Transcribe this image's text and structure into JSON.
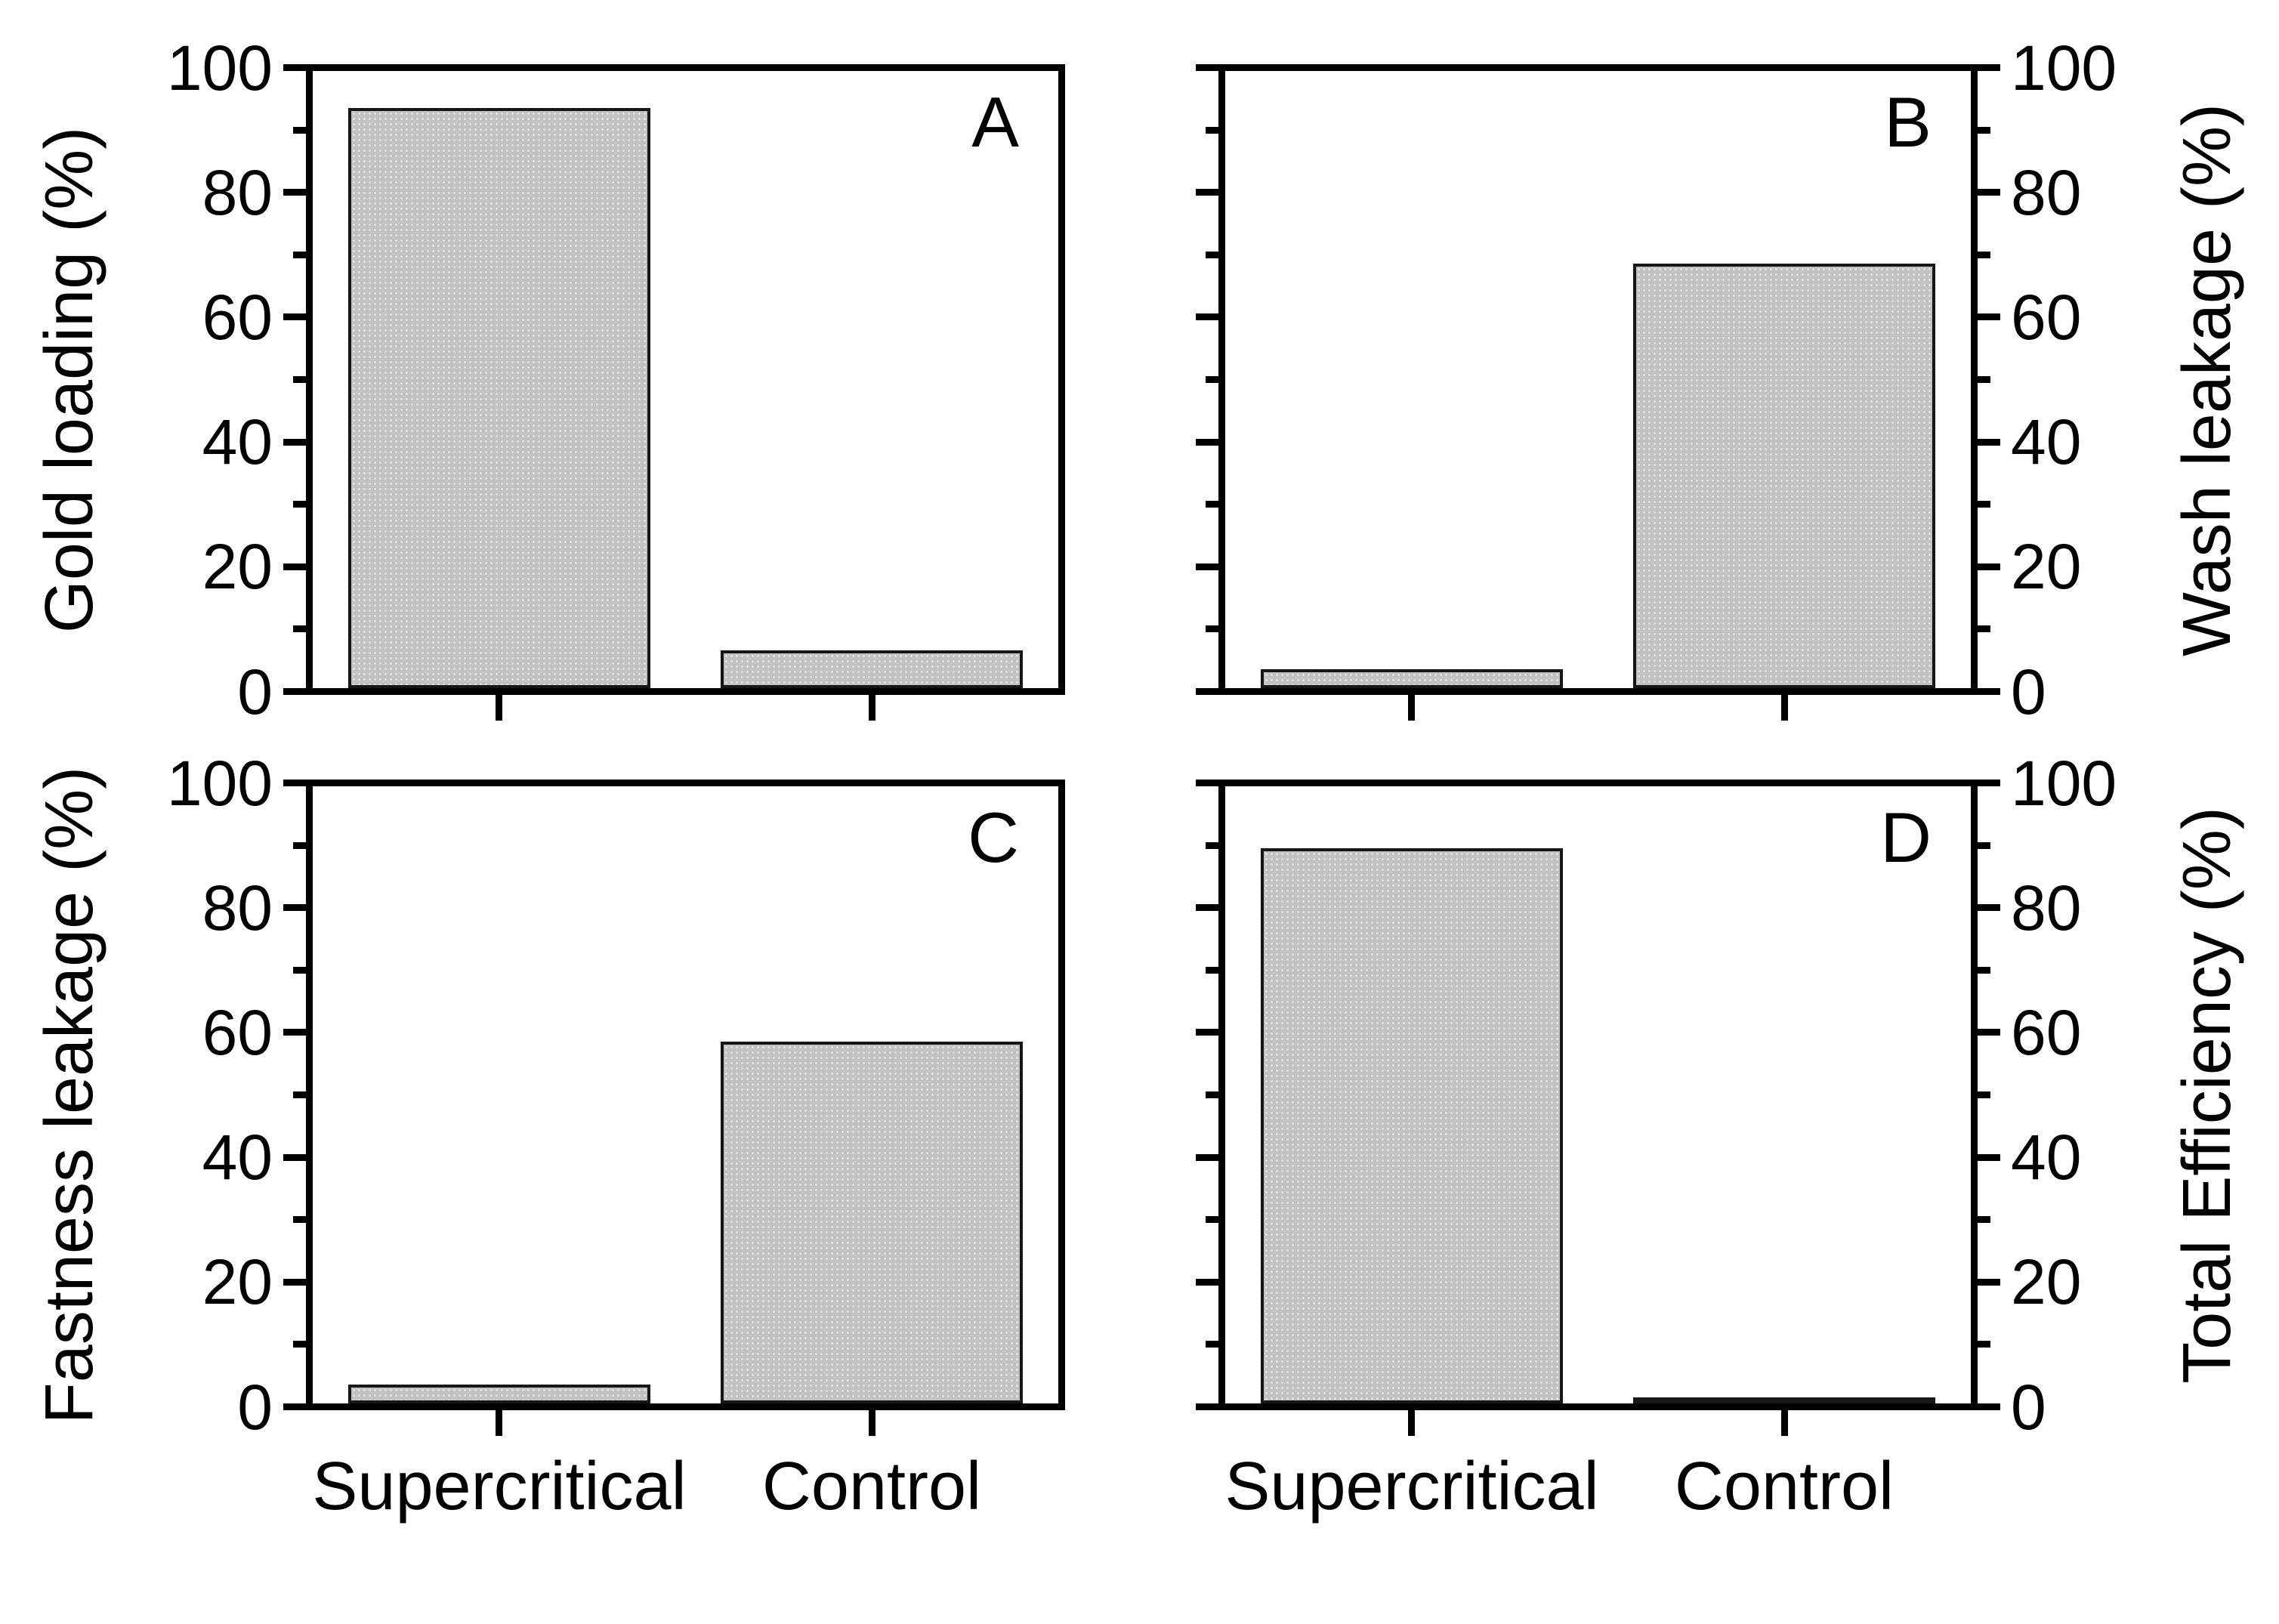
{
  "figure": {
    "background": "#ffffff",
    "frame_color": "#000000",
    "text_color": "#000000",
    "bar_fill": "#c2c2c2",
    "bar_dot": "#dddddd",
    "bar_border": "#161616"
  },
  "chart_data": {
    "type": "bar",
    "categories": [
      "Supercritical",
      "Control"
    ],
    "ylim": [
      0,
      100
    ],
    "yticks_major": [
      0,
      20,
      40,
      60,
      80,
      100
    ],
    "yticks_minor": [
      10,
      30,
      50,
      70,
      90
    ],
    "grid": "off",
    "legend": "none",
    "panels": [
      {
        "letter": "A",
        "ylabel": "Gold loading (%)",
        "axis_side": "left",
        "values": [
          93,
          6
        ]
      },
      {
        "letter": "B",
        "ylabel": "Wash leakage (%)",
        "axis_side": "right",
        "values": [
          3,
          68
        ]
      },
      {
        "letter": "C",
        "ylabel": "Fastness leakage (%)",
        "axis_side": "left",
        "values": [
          3,
          58
        ]
      },
      {
        "letter": "D",
        "ylabel": "Total Efficiency (%)",
        "axis_side": "right",
        "values": [
          89,
          0.8
        ]
      }
    ]
  }
}
